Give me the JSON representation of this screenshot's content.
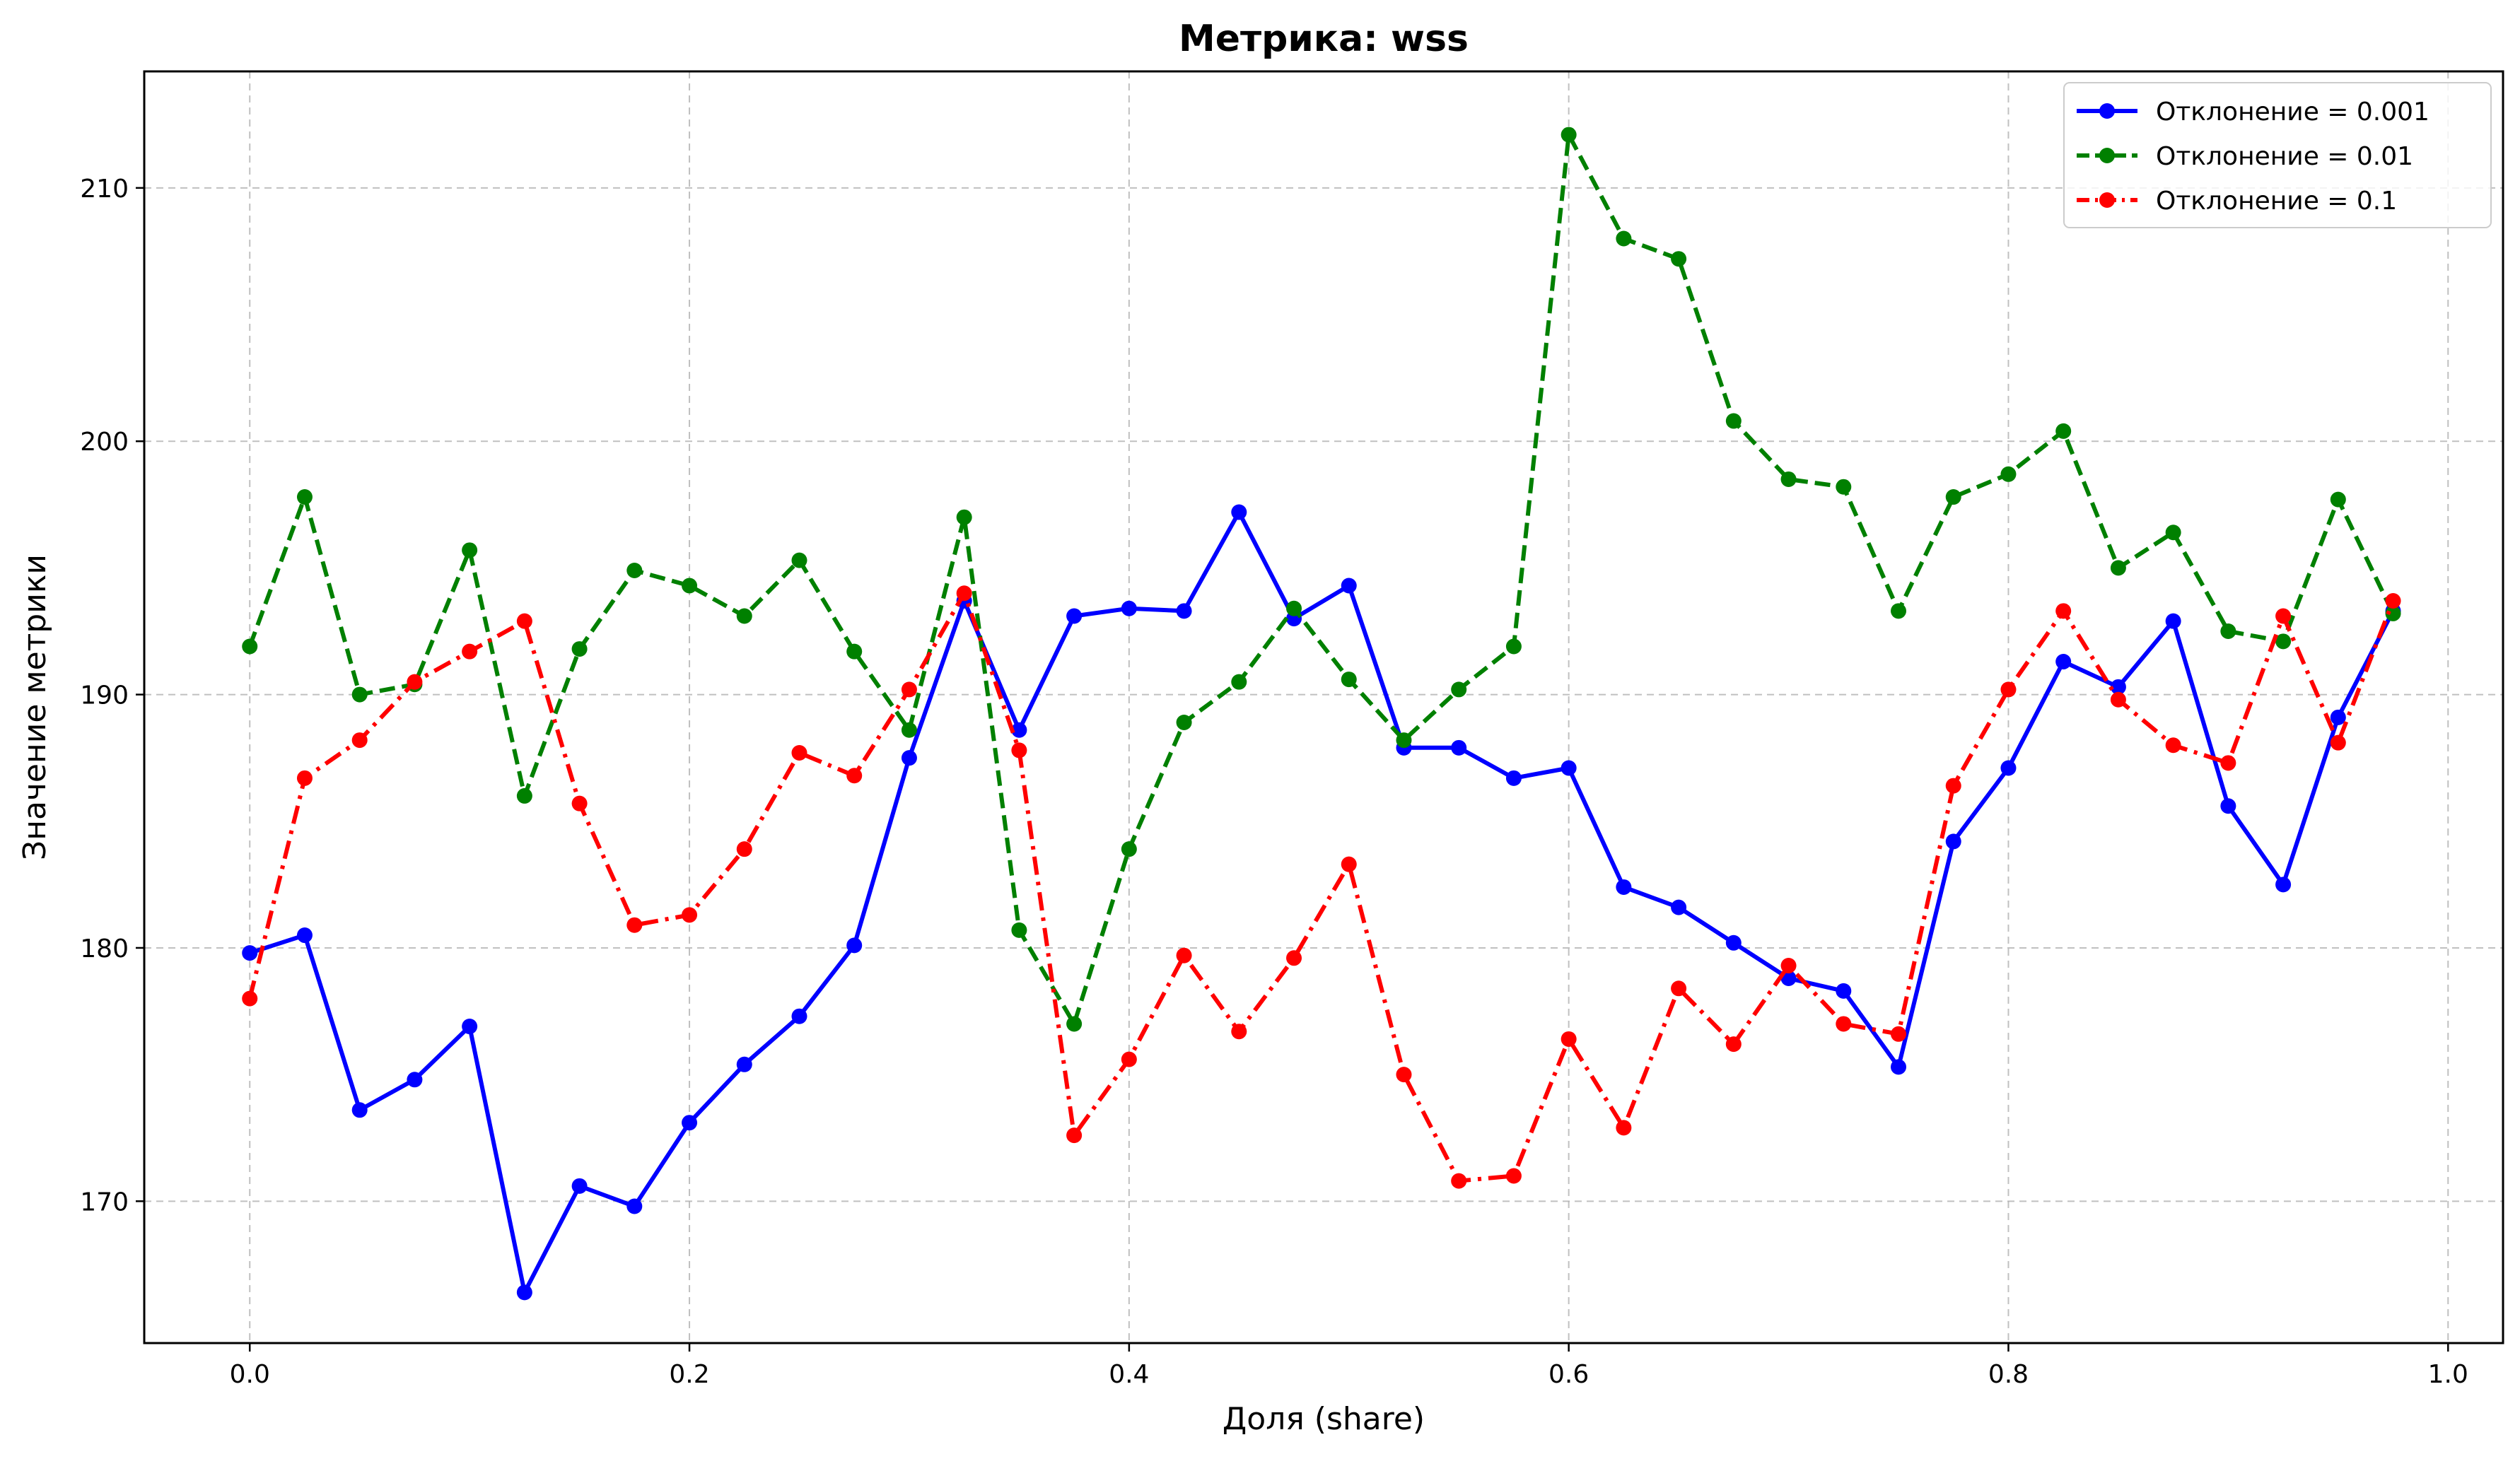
{
  "chart_data": {
    "type": "line",
    "title": "Метрика: wss",
    "xlabel": "Доля (share)",
    "ylabel": "Значение метрики",
    "xlim": [
      -0.048,
      1.025
    ],
    "ylim": [
      164.4,
      214.6
    ],
    "xticks": [
      0.0,
      0.2,
      0.4,
      0.6,
      0.8,
      1.0
    ],
    "xtick_labels": [
      "0.0",
      "0.2",
      "0.4",
      "0.6",
      "0.8",
      "1.0"
    ],
    "yticks": [
      170,
      180,
      190,
      200,
      210
    ],
    "ytick_labels": [
      "170",
      "180",
      "190",
      "200",
      "210"
    ],
    "grid": true,
    "legend_position": "top-right",
    "x": [
      0.0,
      0.025,
      0.05,
      0.075,
      0.1,
      0.125,
      0.15,
      0.175,
      0.2,
      0.225,
      0.25,
      0.275,
      0.3,
      0.325,
      0.35,
      0.375,
      0.4,
      0.425,
      0.45,
      0.475,
      0.5,
      0.525,
      0.55,
      0.575,
      0.6,
      0.625,
      0.65,
      0.675,
      0.7,
      0.725,
      0.75,
      0.775,
      0.8,
      0.825,
      0.85,
      0.875,
      0.9,
      0.925,
      0.95,
      0.975
    ],
    "series": [
      {
        "name": "Отклонение = 0.001",
        "color": "#0000ff",
        "line_style": "solid",
        "values": [
          179.8,
          180.5,
          173.6,
          174.8,
          176.9,
          166.4,
          170.6,
          169.8,
          173.1,
          175.4,
          177.3,
          180.1,
          187.5,
          193.7,
          188.6,
          193.1,
          193.4,
          193.3,
          197.2,
          193.0,
          194.3,
          187.9,
          187.9,
          186.7,
          187.1,
          182.4,
          181.6,
          180.2,
          178.8,
          178.3,
          175.3,
          184.2,
          187.1,
          191.3,
          190.3,
          192.9,
          185.6,
          182.5,
          189.1,
          193.3
        ]
      },
      {
        "name": "Отклонение = 0.01",
        "color": "#008000",
        "line_style": "dashed",
        "values": [
          191.9,
          197.8,
          190.0,
          190.4,
          195.7,
          186.0,
          191.8,
          194.9,
          194.3,
          193.1,
          195.3,
          191.7,
          188.6,
          197.0,
          180.7,
          177.0,
          183.9,
          188.9,
          190.5,
          193.4,
          190.6,
          188.2,
          190.2,
          191.9,
          212.1,
          208.0,
          207.2,
          200.8,
          198.5,
          198.2,
          193.3,
          197.8,
          198.7,
          200.4,
          195.0,
          196.4,
          192.5,
          192.1,
          197.7,
          193.2
        ]
      },
      {
        "name": "Отклонение = 0.1",
        "color": "#ff0000",
        "line_style": "dashdot",
        "values": [
          178.0,
          186.7,
          188.2,
          190.5,
          191.7,
          192.9,
          185.7,
          180.9,
          181.3,
          183.9,
          187.7,
          186.8,
          190.2,
          194.0,
          187.8,
          172.6,
          175.6,
          179.7,
          176.7,
          179.6,
          183.3,
          175.0,
          170.8,
          171.0,
          176.4,
          172.9,
          178.4,
          176.2,
          179.3,
          177.0,
          176.6,
          186.4,
          190.2,
          193.3,
          189.8,
          188.0,
          187.3,
          193.1,
          188.1,
          193.7
        ]
      }
    ]
  }
}
